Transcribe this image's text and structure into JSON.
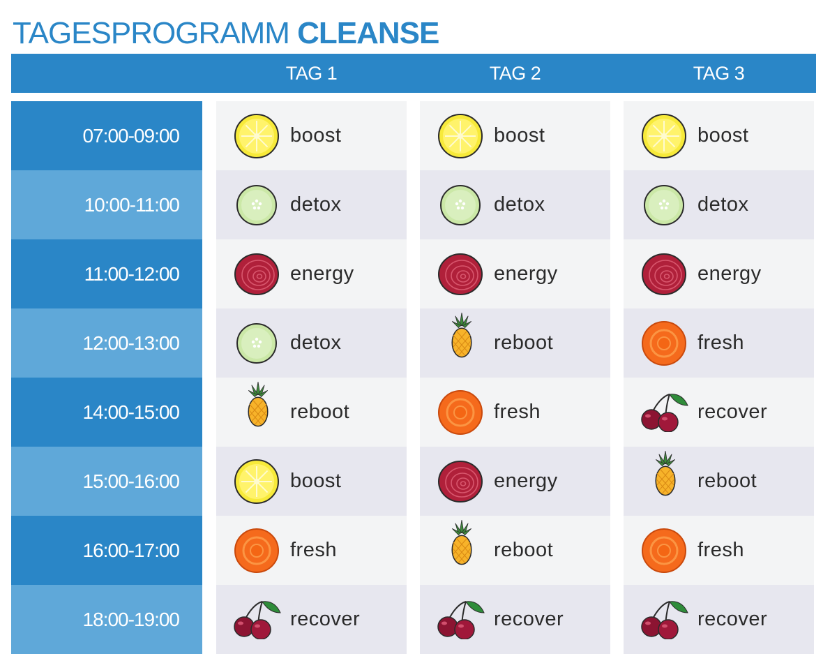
{
  "title": {
    "light": "TAGESPROGRAMM ",
    "bold": "CLEANSE"
  },
  "days": [
    "TAG 1",
    "TAG 2",
    "TAG 3"
  ],
  "times": [
    "07:00-09:00",
    "10:00-11:00",
    "11:00-12:00",
    "12:00-13:00",
    "14:00-15:00",
    "15:00-16:00",
    "16:00-17:00",
    "18:00-19:00"
  ],
  "schedule": [
    [
      {
        "label": "boost",
        "icon": "lemon-icon"
      },
      {
        "label": "detox",
        "icon": "cucumber-icon"
      },
      {
        "label": "energy",
        "icon": "beet-icon"
      },
      {
        "label": "detox",
        "icon": "cucumber-icon"
      },
      {
        "label": "reboot",
        "icon": "pineapple-icon"
      },
      {
        "label": "boost",
        "icon": "lemon-icon"
      },
      {
        "label": "fresh",
        "icon": "carrot-icon"
      },
      {
        "label": "recover",
        "icon": "cherry-icon"
      }
    ],
    [
      {
        "label": "boost",
        "icon": "lemon-icon"
      },
      {
        "label": "detox",
        "icon": "cucumber-icon"
      },
      {
        "label": "energy",
        "icon": "beet-icon"
      },
      {
        "label": "reboot",
        "icon": "pineapple-icon"
      },
      {
        "label": "fresh",
        "icon": "carrot-icon"
      },
      {
        "label": "energy",
        "icon": "beet-icon"
      },
      {
        "label": "reboot",
        "icon": "pineapple-icon"
      },
      {
        "label": "recover",
        "icon": "cherry-icon"
      }
    ],
    [
      {
        "label": "boost",
        "icon": "lemon-icon"
      },
      {
        "label": "detox",
        "icon": "cucumber-icon"
      },
      {
        "label": "energy",
        "icon": "beet-icon"
      },
      {
        "label": "fresh",
        "icon": "carrot-icon"
      },
      {
        "label": "recover",
        "icon": "cherry-icon"
      },
      {
        "label": "reboot",
        "icon": "pineapple-icon"
      },
      {
        "label": "fresh",
        "icon": "carrot-icon"
      },
      {
        "label": "recover",
        "icon": "cherry-icon"
      }
    ]
  ],
  "colors": {
    "header": "#2a86c7",
    "time_dark": "#2a86c7",
    "time_light": "#5fa8d9"
  }
}
